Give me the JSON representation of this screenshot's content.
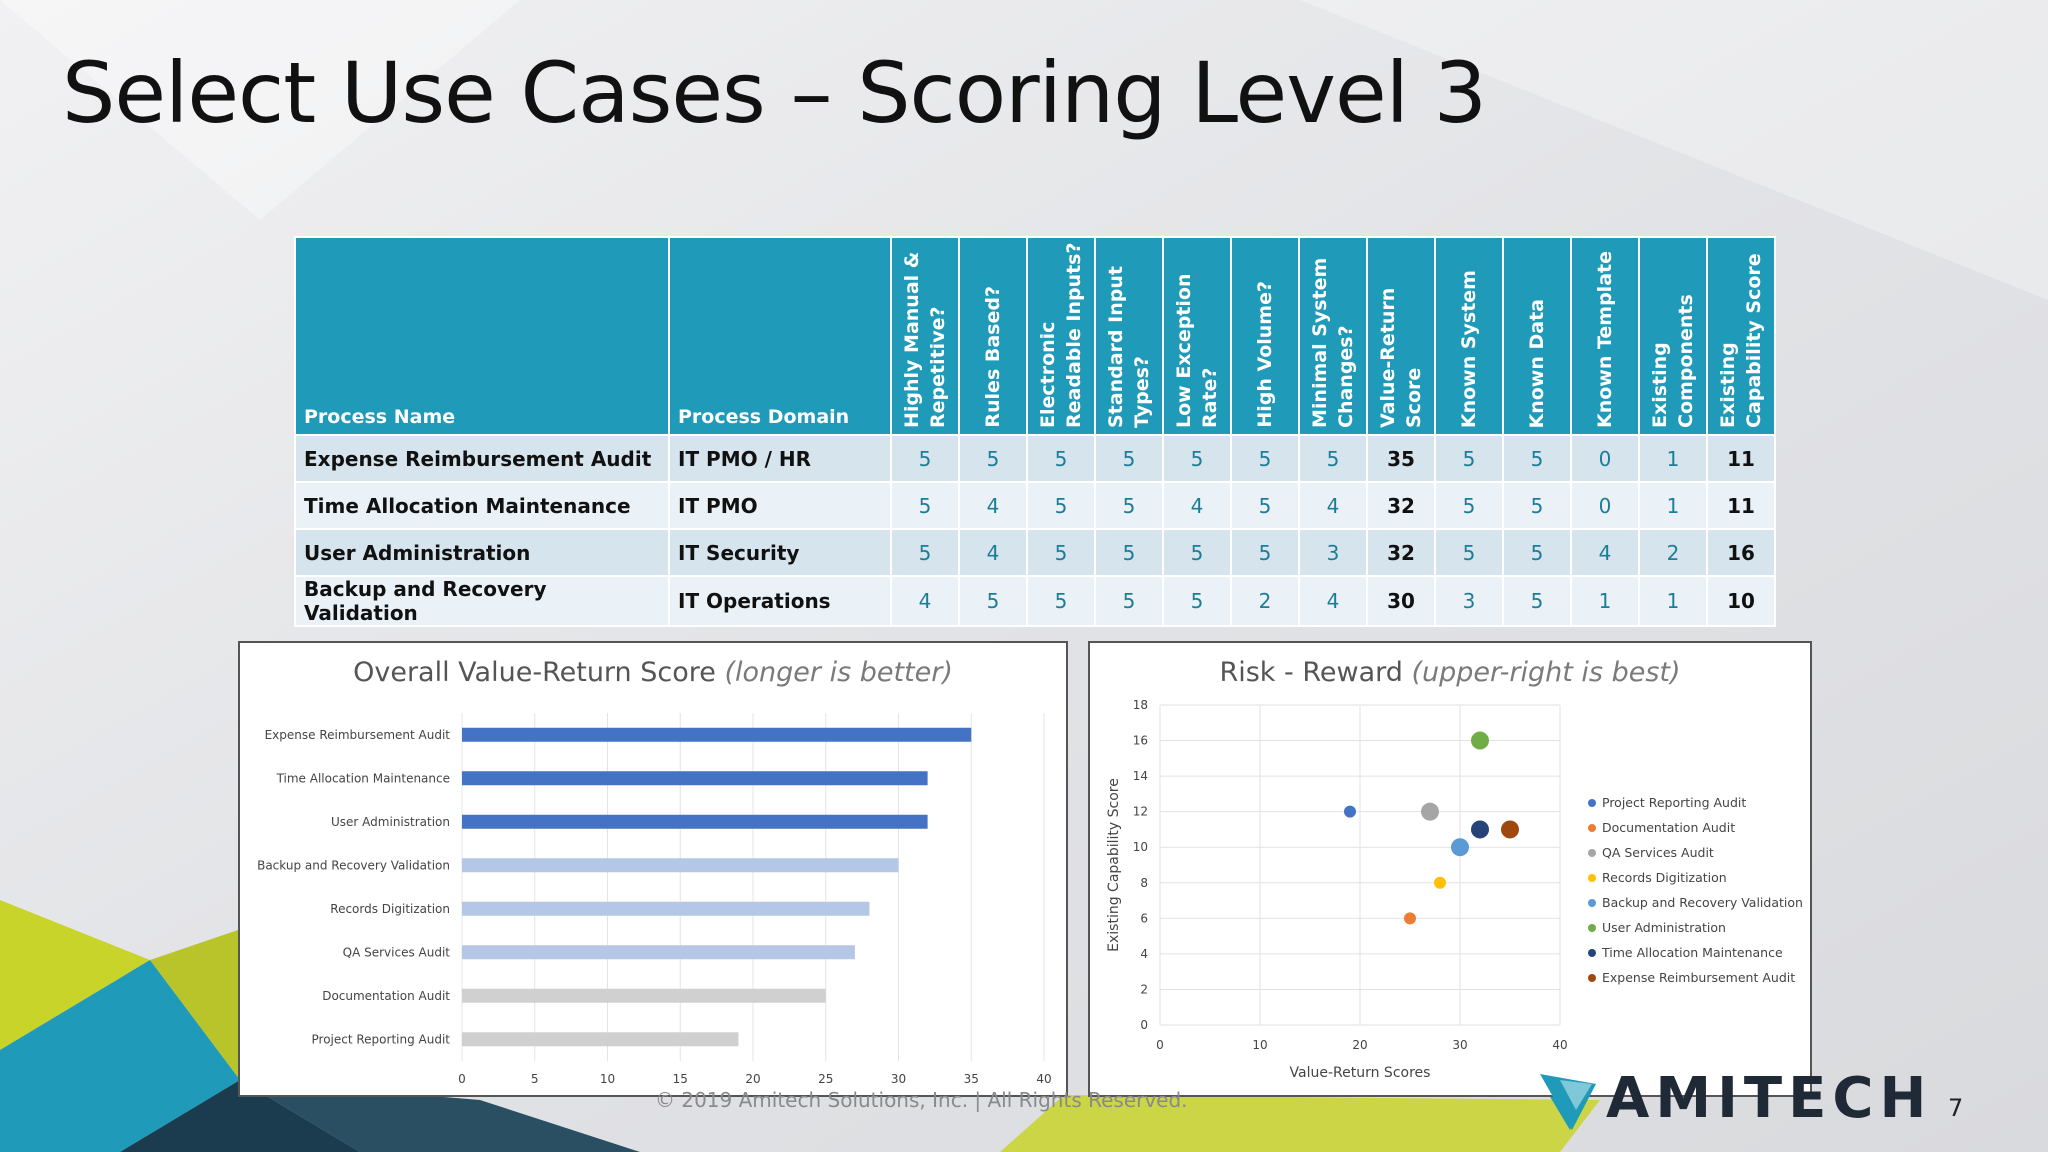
{
  "slide": {
    "title": "Select Use Cases – Scoring Level 3",
    "footer": "© 2019 Amitech Solutions, Inc.  |  All Rights Reserved.",
    "logo_text": "AMITECH",
    "page_number": "7",
    "accent_colors": {
      "teal": "#1f9ab8",
      "lime": "#c9d42a",
      "navy": "#1f2a36"
    }
  },
  "table": {
    "headers": [
      "Process Name",
      "Process Domain",
      "Highly Manual & Repetitive?",
      "Rules Based?",
      "Electronic Readable Inputs?",
      "Standard Input Types?",
      "Low Exception Rate?",
      "High Volume?",
      "Minimal System Changes?",
      "Value-Return Score",
      "Known System",
      "Known Data",
      "Known Template",
      "Existing Components",
      "Existing Capability Score"
    ],
    "rows": [
      {
        "name": "Expense Reimbursement Audit",
        "domain": "IT PMO / HR",
        "values": [
          "5",
          "5",
          "5",
          "5",
          "5",
          "5",
          "5",
          "35",
          "5",
          "5",
          "0",
          "1",
          "11"
        ]
      },
      {
        "name": "Time Allocation Maintenance",
        "domain": "IT PMO",
        "values": [
          "5",
          "4",
          "5",
          "5",
          "4",
          "5",
          "4",
          "32",
          "5",
          "5",
          "0",
          "1",
          "11"
        ]
      },
      {
        "name": "User Administration",
        "domain": "IT Security",
        "values": [
          "5",
          "4",
          "5",
          "5",
          "5",
          "5",
          "3",
          "32",
          "5",
          "5",
          "4",
          "2",
          "16"
        ]
      },
      {
        "name": "Backup and Recovery Validation",
        "domain": "IT Operations",
        "values": [
          "4",
          "5",
          "5",
          "5",
          "5",
          "2",
          "4",
          "30",
          "3",
          "5",
          "1",
          "1",
          "10"
        ]
      }
    ]
  },
  "chart_data": [
    {
      "type": "bar",
      "title": "Overall Value-Return Score",
      "subtitle": "(longer is better)",
      "orientation": "horizontal",
      "categories": [
        "Expense Reimbursement Audit",
        "Time Allocation Maintenance",
        "User Administration",
        "Backup and Recovery Validation",
        "Records Digitization",
        "QA Services Audit",
        "Documentation Audit",
        "Project Reporting Audit"
      ],
      "values": [
        35,
        32,
        32,
        30,
        28,
        27,
        25,
        19
      ],
      "colors": [
        "#4472c4",
        "#4472c4",
        "#4472c4",
        "#b4c7e7",
        "#b4c7e7",
        "#b4c7e7",
        "#d0d0d0",
        "#d0d0d0"
      ],
      "xlim": [
        0,
        40
      ],
      "xticks": [
        0,
        5,
        10,
        15,
        20,
        25,
        30,
        35,
        40
      ],
      "grid": true
    },
    {
      "type": "scatter",
      "title": "Risk - Reward",
      "subtitle": "(upper-right is best)",
      "xlabel": "Value-Return Scores",
      "ylabel": "Existing Capability Score",
      "xlim": [
        0,
        40
      ],
      "ylim": [
        0,
        18
      ],
      "xticks": [
        0,
        10,
        20,
        30,
        40
      ],
      "yticks": [
        0,
        2,
        4,
        6,
        8,
        10,
        12,
        14,
        16,
        18
      ],
      "grid": true,
      "legend_position": "right",
      "series": [
        {
          "name": "Project Reporting Audit",
          "x": 19,
          "y": 12,
          "color": "#4472c4",
          "size": "small"
        },
        {
          "name": "Documentation Audit",
          "x": 25,
          "y": 6,
          "color": "#ed7d31",
          "size": "small"
        },
        {
          "name": "QA Services Audit",
          "x": 27,
          "y": 12,
          "color": "#a5a5a5",
          "size": "large"
        },
        {
          "name": "Records Digitization",
          "x": 28,
          "y": 8,
          "color": "#ffc000",
          "size": "small"
        },
        {
          "name": "Backup and Recovery Validation",
          "x": 30,
          "y": 10,
          "color": "#5b9bd5",
          "size": "large"
        },
        {
          "name": "User Administration",
          "x": 32,
          "y": 16,
          "color": "#70ad47",
          "size": "large"
        },
        {
          "name": "Time Allocation Maintenance",
          "x": 32,
          "y": 11,
          "color": "#264478",
          "size": "large"
        },
        {
          "name": "Expense Reimbursement Audit",
          "x": 35,
          "y": 11,
          "color": "#9e480e",
          "size": "large"
        }
      ]
    }
  ]
}
